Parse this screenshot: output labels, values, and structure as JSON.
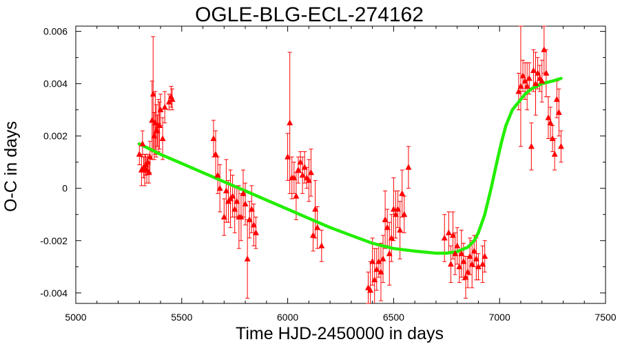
{
  "chart_data": {
    "type": "scatter",
    "title": "OGLE-BLG-ECL-274162",
    "xlabel": "Time HJD-2450000 in days",
    "ylabel": "O-C in days",
    "xlim": [
      5000,
      7500
    ],
    "ylim": [
      -0.0044,
      0.0062
    ],
    "xticks": [
      5000,
      5500,
      6000,
      6500,
      7000,
      7500
    ],
    "xtick_labels": [
      "5000",
      "5500",
      "6000",
      "6500",
      "7000",
      "7500"
    ],
    "yticks": [
      -0.004,
      -0.002,
      0,
      0.002,
      0.004,
      0.006
    ],
    "ytick_labels": [
      "-0.004",
      "-0.002",
      "0",
      "0.002",
      "0.004",
      "0.006"
    ],
    "grid": false,
    "colors": {
      "points": "#ff0000",
      "fit": "#22ee00",
      "axes": "#000000"
    },
    "series": [
      {
        "marker": "triangle",
        "x": [
          5300,
          5310,
          5315,
          5320,
          5325,
          5330,
          5335,
          5340,
          5345,
          5350,
          5360,
          5365,
          5370,
          5375,
          5380,
          5385,
          5390,
          5395,
          5400,
          5410,
          5420,
          5440,
          5450,
          5455,
          5650,
          5660,
          5670,
          5680,
          5700,
          5710,
          5720,
          5730,
          5740,
          5750,
          5760,
          5770,
          5780,
          5790,
          5800,
          5810,
          5820,
          5830,
          5840,
          5850,
          6000,
          6010,
          6020,
          6030,
          6040,
          6050,
          6060,
          6070,
          6080,
          6090,
          6100,
          6110,
          6120,
          6130,
          6140,
          6160,
          6380,
          6390,
          6400,
          6410,
          6420,
          6430,
          6440,
          6450,
          6460,
          6470,
          6480,
          6490,
          6500,
          6510,
          6520,
          6530,
          6540,
          6550,
          6570,
          6740,
          6760,
          6770,
          6780,
          6790,
          6800,
          6810,
          6820,
          6830,
          6840,
          6850,
          6860,
          6870,
          6880,
          6890,
          6900,
          6920,
          6930,
          7090,
          7100,
          7110,
          7120,
          7130,
          7140,
          7150,
          7160,
          7170,
          7180,
          7190,
          7200,
          7210,
          7220,
          7230,
          7240,
          7250,
          7260,
          7270,
          7280,
          7290
        ],
        "y": [
          0.0013,
          0.0007,
          0.0017,
          0.0008,
          0.0007,
          0.0009,
          0.0007,
          0.001,
          0.0006,
          0.0012,
          0.0026,
          0.0036,
          0.002,
          0.0025,
          0.0022,
          0.0022,
          0.0024,
          0.0024,
          0.003,
          0.0019,
          0.0031,
          0.0033,
          0.0035,
          0.0034,
          0.0019,
          0.0013,
          0.0005,
          0.0,
          -0.0011,
          -0.0001,
          -0.0005,
          -0.0004,
          -0.0003,
          -0.0008,
          -0.0005,
          -0.0011,
          -0.0011,
          -0.0002,
          -0.0006,
          -0.0027,
          -0.0012,
          -0.0008,
          -0.0014,
          -0.0017,
          0.0012,
          0.0025,
          0.0004,
          0.0004,
          -0.0003,
          0.0007,
          0.001,
          0.0005,
          0.0008,
          0.0004,
          0.0003,
          0.0006,
          -0.0018,
          -0.0008,
          -0.0015,
          -0.0022,
          -0.0038,
          -0.0039,
          -0.0028,
          -0.0035,
          -0.0031,
          -0.0028,
          -0.0032,
          -0.0027,
          -0.0012,
          -0.0015,
          -0.0025,
          -0.0019,
          -0.0008,
          -0.001,
          -0.0008,
          -0.0016,
          -0.0002,
          -0.001,
          0.0008,
          -0.0019,
          -0.0017,
          -0.0029,
          -0.0018,
          -0.0025,
          -0.0022,
          -0.003,
          -0.0025,
          -0.0028,
          -0.0034,
          -0.0032,
          -0.0026,
          -0.0029,
          -0.0024,
          -0.0027,
          -0.003,
          -0.0029,
          -0.0026,
          0.0037,
          0.0039,
          0.0043,
          0.0041,
          0.0039,
          0.0042,
          0.0016,
          0.0045,
          0.004,
          0.0044,
          0.0042,
          0.0041,
          0.0053,
          0.0044,
          0.0027,
          0.0025,
          0.0019,
          0.0013,
          0.0034,
          0.0029,
          0.0016
        ],
        "yerr": [
          0.0004,
          0.0006,
          0.0005,
          0.0004,
          0.0006,
          0.0004,
          0.0005,
          0.0003,
          0.0004,
          0.0006,
          0.0015,
          0.0022,
          0.0009,
          0.0012,
          0.001,
          0.0006,
          0.001,
          0.0009,
          0.0006,
          0.0008,
          0.0006,
          0.0003,
          0.0004,
          0.0004,
          0.0007,
          0.0009,
          0.0007,
          0.0009,
          0.0007,
          0.0012,
          0.0008,
          0.0011,
          0.0008,
          0.0009,
          0.0006,
          0.0012,
          0.0009,
          0.0009,
          0.0008,
          0.0015,
          0.0007,
          0.0009,
          0.0008,
          0.0006,
          0.0009,
          0.0027,
          0.0008,
          0.0006,
          0.0009,
          0.0005,
          0.0004,
          0.0007,
          0.0006,
          0.0004,
          0.0008,
          0.0009,
          0.0006,
          0.0011,
          0.0008,
          0.0006,
          0.0006,
          0.0011,
          0.0009,
          0.0012,
          0.0008,
          0.0006,
          0.0011,
          0.0009,
          0.0011,
          0.0007,
          0.0012,
          0.0009,
          0.0012,
          0.0009,
          0.0007,
          0.0011,
          0.0009,
          0.0007,
          0.0008,
          0.0009,
          0.0008,
          0.0007,
          0.0009,
          0.0008,
          0.0007,
          0.0006,
          0.0009,
          0.0007,
          0.0008,
          0.0006,
          0.0007,
          0.0009,
          0.0006,
          0.0008,
          0.0005,
          0.0007,
          0.0006,
          0.0007,
          0.0023,
          0.0006,
          0.0007,
          0.0009,
          0.0006,
          0.0009,
          0.0008,
          0.0012,
          0.0006,
          0.0005,
          0.0008,
          0.0009,
          0.0009,
          0.0008,
          0.0006,
          0.0005,
          0.0006,
          0.0007,
          0.0009,
          0.0006
        ]
      },
      {
        "style": "line",
        "x": [
          5300,
          5400,
          5500,
          5600,
          5700,
          5800,
          5900,
          6000,
          6100,
          6200,
          6300,
          6400,
          6500,
          6600,
          6700,
          6750,
          6800,
          6850,
          6880,
          6900,
          6930,
          6960,
          6990,
          7010,
          7030,
          7060,
          7090,
          7120,
          7150,
          7200,
          7250,
          7290
        ],
        "y": [
          0.0017,
          0.0013,
          0.00095,
          0.0006,
          0.00025,
          -0.0001,
          -0.00045,
          -0.0008,
          -0.00115,
          -0.0015,
          -0.0018,
          -0.0021,
          -0.0023,
          -0.0024,
          -0.00248,
          -0.00248,
          -0.00242,
          -0.00225,
          -0.002,
          -0.0017,
          -0.001,
          0.0,
          0.0011,
          0.0018,
          0.0024,
          0.003,
          0.0033,
          0.0036,
          0.0038,
          0.004,
          0.0041,
          0.0042
        ]
      }
    ]
  }
}
